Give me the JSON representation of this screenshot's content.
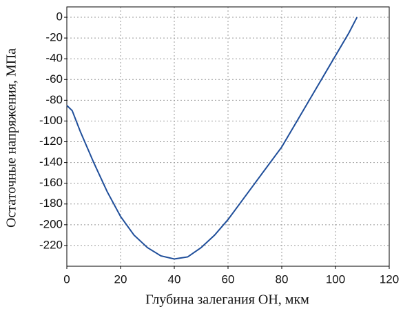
{
  "chart_data": {
    "type": "line",
    "xlabel": "Глубина залегания ОН, мкм",
    "ylabel": "Остаточные напряжения, МПа",
    "x": [
      0,
      2,
      5,
      10,
      15,
      20,
      25,
      30,
      35,
      40,
      45,
      50,
      55,
      60,
      70,
      80,
      90,
      100,
      105,
      108
    ],
    "series": [
      {
        "color": "#1f4e9a",
        "values": [
          -85,
          -90,
          -110,
          -140,
          -168,
          -192,
          -210,
          -222,
          -230,
          -233,
          -231,
          -222,
          -210,
          -195,
          -160,
          -125,
          -81,
          -37,
          -15,
          0
        ]
      }
    ],
    "xlim": [
      0,
      120
    ],
    "xticks": [
      0,
      20,
      40,
      60,
      80,
      100,
      120
    ],
    "ylim": [
      -240,
      10
    ],
    "yticks": [
      0,
      -20,
      -40,
      -60,
      -80,
      -100,
      -120,
      -140,
      -160,
      -180,
      -200,
      -220
    ],
    "grid": true
  }
}
